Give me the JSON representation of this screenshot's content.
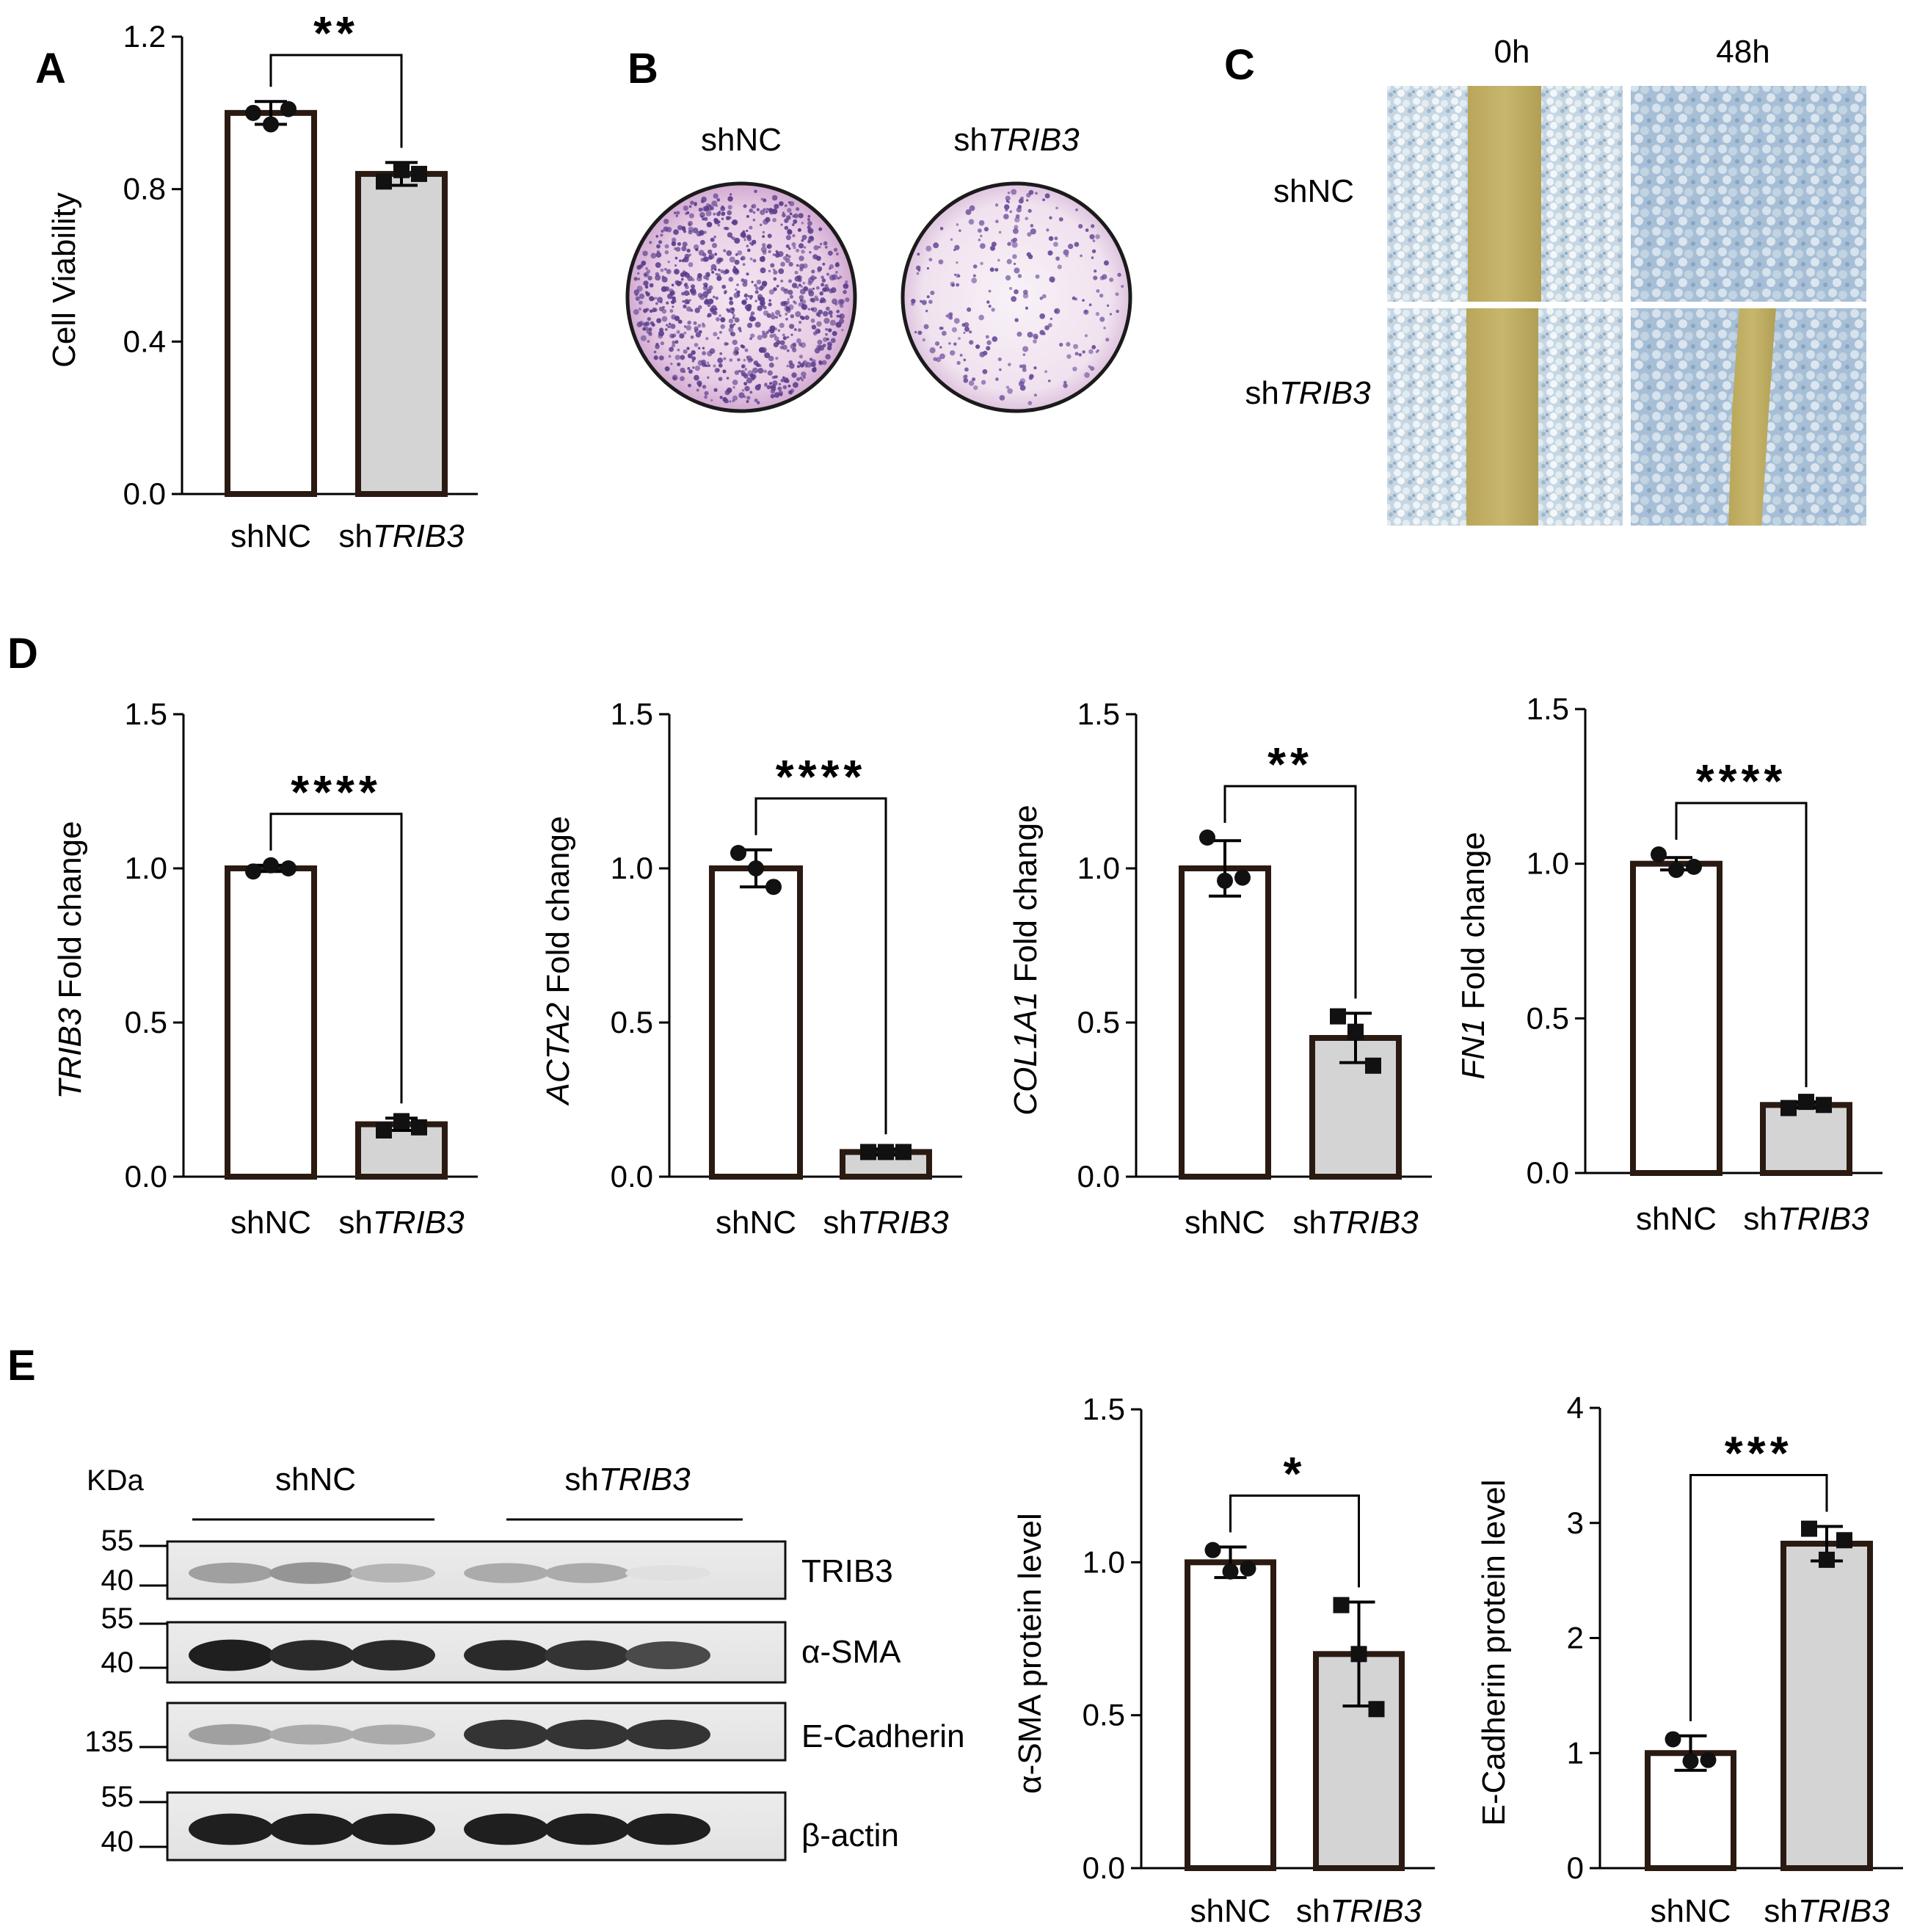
{
  "panels": {
    "A": "A",
    "B": "B",
    "C": "C",
    "D": "D",
    "E": "E"
  },
  "colony": {
    "labels": [
      {
        "pre": "sh",
        "it": "",
        "tail": "NC"
      },
      {
        "pre": "sh",
        "it": "TRIB3",
        "tail": ""
      }
    ]
  },
  "scratch": {
    "times": [
      "0h",
      "48h"
    ],
    "rows": [
      {
        "pre": "sh",
        "it": "",
        "tail": "NC"
      },
      {
        "pre": "sh",
        "it": "TRIB3",
        "tail": ""
      }
    ]
  },
  "western": {
    "kda_label": "KDa",
    "groups": [
      {
        "pre": "sh",
        "it": "",
        "tail": "NC"
      },
      {
        "pre": "sh",
        "it": "TRIB3",
        "tail": ""
      }
    ],
    "blots": [
      {
        "name": "TRIB3",
        "markers": [
          "55",
          "40"
        ],
        "intensities": [
          0.35,
          0.4,
          0.25,
          0.3,
          0.3,
          0.05
        ]
      },
      {
        "name": "α-SMA",
        "markers": [
          "55",
          "40"
        ],
        "intensities": [
          0.95,
          0.9,
          0.9,
          0.9,
          0.85,
          0.75
        ]
      },
      {
        "name": "E-Cadherin",
        "markers": [
          "135"
        ],
        "intensities": [
          0.35,
          0.3,
          0.3,
          0.85,
          0.85,
          0.85
        ]
      },
      {
        "name": "β-actin",
        "markers": [
          "55",
          "40"
        ],
        "intensities": [
          0.95,
          0.95,
          0.95,
          0.95,
          0.95,
          0.95
        ]
      }
    ]
  },
  "colors": {
    "control_bar": "#ffffff",
    "treated_bar": "#d4d4d4",
    "outline": "#2a1a12",
    "point": "#111111"
  },
  "chart_data": [
    {
      "id": "A",
      "type": "bar",
      "categories": [
        {
          "pre": "sh",
          "it": "",
          "tail": "NC"
        },
        {
          "pre": "sh",
          "it": "TRIB3",
          "tail": ""
        }
      ],
      "values": [
        1.0,
        0.84
      ],
      "sd": [
        0.03,
        0.03
      ],
      "points": [
        [
          1.0,
          0.97,
          1.01
        ],
        [
          0.82,
          0.85,
          0.84
        ]
      ],
      "ylabel": {
        "it": "",
        "rest": "Cell Viability"
      },
      "ylim": [
        0,
        1.2
      ],
      "yticks": [
        "0.0",
        "0.4",
        "0.8",
        "1.2"
      ],
      "significance": "**",
      "grid": false
    },
    {
      "id": "D1",
      "type": "bar",
      "categories": [
        {
          "pre": "sh",
          "it": "",
          "tail": "NC"
        },
        {
          "pre": "sh",
          "it": "TRIB3",
          "tail": ""
        }
      ],
      "values": [
        1.0,
        0.17
      ],
      "sd": [
        0.01,
        0.02
      ],
      "points": [
        [
          0.99,
          1.01,
          1.0
        ],
        [
          0.15,
          0.18,
          0.16
        ]
      ],
      "ylabel": {
        "it": "TRIB3",
        "rest": " Fold change"
      },
      "ylim": [
        0,
        1.5
      ],
      "yticks": [
        "0.0",
        "0.5",
        "1.0",
        "1.5"
      ],
      "significance": "****",
      "grid": false
    },
    {
      "id": "D2",
      "type": "bar",
      "categories": [
        {
          "pre": "sh",
          "it": "",
          "tail": "NC"
        },
        {
          "pre": "sh",
          "it": "TRIB3",
          "tail": ""
        }
      ],
      "values": [
        1.0,
        0.08
      ],
      "sd": [
        0.06,
        0.01
      ],
      "points": [
        [
          1.05,
          1.0,
          0.94
        ],
        [
          0.08,
          0.08,
          0.08
        ]
      ],
      "ylabel": {
        "it": "ACTA2",
        "rest": " Fold change"
      },
      "ylim": [
        0,
        1.5
      ],
      "yticks": [
        "0.0",
        "0.5",
        "1.0",
        "1.5"
      ],
      "significance": "****",
      "grid": false
    },
    {
      "id": "D3",
      "type": "bar",
      "categories": [
        {
          "pre": "sh",
          "it": "",
          "tail": "NC"
        },
        {
          "pre": "sh",
          "it": "TRIB3",
          "tail": ""
        }
      ],
      "values": [
        1.0,
        0.45
      ],
      "sd": [
        0.09,
        0.08
      ],
      "points": [
        [
          1.1,
          0.96,
          0.97
        ],
        [
          0.52,
          0.47,
          0.36
        ]
      ],
      "ylabel": {
        "it": "COL1A1",
        "rest": " Fold change"
      },
      "ylim": [
        0,
        1.5
      ],
      "yticks": [
        "0.0",
        "0.5",
        "1.0",
        "1.5"
      ],
      "significance": "**",
      "grid": false
    },
    {
      "id": "D4",
      "type": "bar",
      "categories": [
        {
          "pre": "sh",
          "it": "",
          "tail": "NC"
        },
        {
          "pre": "sh",
          "it": "TRIB3",
          "tail": ""
        }
      ],
      "values": [
        1.0,
        0.22
      ],
      "sd": [
        0.02,
        0.01
      ],
      "points": [
        [
          1.03,
          0.98,
          0.99
        ],
        [
          0.21,
          0.23,
          0.22
        ]
      ],
      "ylabel": {
        "it": "FN1",
        "rest": " Fold change"
      },
      "ylim": [
        0,
        1.5
      ],
      "yticks": [
        "0.0",
        "0.5",
        "1.0",
        "1.5"
      ],
      "significance": "****",
      "grid": false
    },
    {
      "id": "E1",
      "type": "bar",
      "categories": [
        {
          "pre": "sh",
          "it": "",
          "tail": "NC"
        },
        {
          "pre": "sh",
          "it": "TRIB3",
          "tail": ""
        }
      ],
      "values": [
        1.0,
        0.7
      ],
      "sd": [
        0.05,
        0.17
      ],
      "points": [
        [
          1.04,
          0.97,
          0.98
        ],
        [
          0.86,
          0.7,
          0.52
        ]
      ],
      "ylabel": {
        "it": "",
        "rest": "α-SMA protein level"
      },
      "ylim": [
        0,
        1.5
      ],
      "yticks": [
        "0.0",
        "0.5",
        "1.0",
        "1.5"
      ],
      "significance": "*",
      "grid": false
    },
    {
      "id": "E2",
      "type": "bar",
      "categories": [
        {
          "pre": "sh",
          "it": "",
          "tail": "NC"
        },
        {
          "pre": "sh",
          "it": "TRIB3",
          "tail": ""
        }
      ],
      "values": [
        1.0,
        2.82
      ],
      "sd": [
        0.15,
        0.15
      ],
      "points": [
        [
          1.12,
          0.93,
          0.94
        ],
        [
          2.95,
          2.68,
          2.85
        ]
      ],
      "ylabel": {
        "it": "",
        "rest": "E-Cadherin protein level"
      },
      "ylim": [
        0,
        4
      ],
      "yticks": [
        "0",
        "1",
        "2",
        "3",
        "4"
      ],
      "significance": "***",
      "grid": false
    }
  ]
}
